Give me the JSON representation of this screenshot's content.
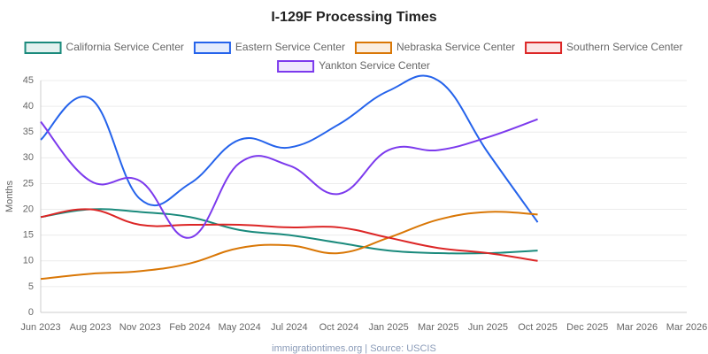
{
  "chart_data": {
    "type": "line",
    "title": "I-129F Processing Times",
    "ylabel": "Months",
    "footer": "immigrationtimes.org | Source: USCIS",
    "categories": [
      "Jun 2023",
      "Aug 2023",
      "Nov 2023",
      "Feb 2024",
      "May 2024",
      "Jul 2024",
      "Oct 2024",
      "Jan 2025",
      "Mar 2025",
      "Jun 2025",
      "Oct 2025",
      "Dec 2025",
      "Mar 2026",
      "Mar 2026"
    ],
    "series": [
      {
        "name": "California Service Center",
        "color": "#1a8a7c",
        "values": [
          18.5,
          20,
          19.5,
          18.5,
          16,
          15,
          13.5,
          12,
          11.5,
          11.5,
          12,
          null,
          null,
          null
        ]
      },
      {
        "name": "Eastern Service Center",
        "color": "#2563eb",
        "values": [
          33.5,
          41.5,
          22,
          25,
          33.5,
          32,
          36.5,
          43,
          45,
          31,
          17.5,
          null,
          null,
          null
        ]
      },
      {
        "name": "Nebraska Service Center",
        "color": "#d97706",
        "values": [
          6.5,
          7.5,
          8,
          9.5,
          12.5,
          13,
          11.5,
          14.5,
          18,
          19.5,
          19,
          null,
          null,
          null
        ]
      },
      {
        "name": "Southern Service Center",
        "color": "#dc2626",
        "values": [
          18.5,
          20,
          17,
          17,
          17,
          16.5,
          16.5,
          14.5,
          12.5,
          11.5,
          10,
          null,
          null,
          null
        ]
      },
      {
        "name": "Yankton Service Center",
        "color": "#7c3aed",
        "values": [
          37,
          25.5,
          25.5,
          14.5,
          29,
          28.5,
          23,
          31.5,
          31.5,
          34,
          37.5,
          null,
          null,
          null
        ]
      }
    ],
    "ylim": [
      0,
      45
    ],
    "yticks": [
      0,
      5,
      10,
      15,
      20,
      25,
      30,
      35,
      40,
      45
    ],
    "grid": true,
    "legend": "top"
  }
}
